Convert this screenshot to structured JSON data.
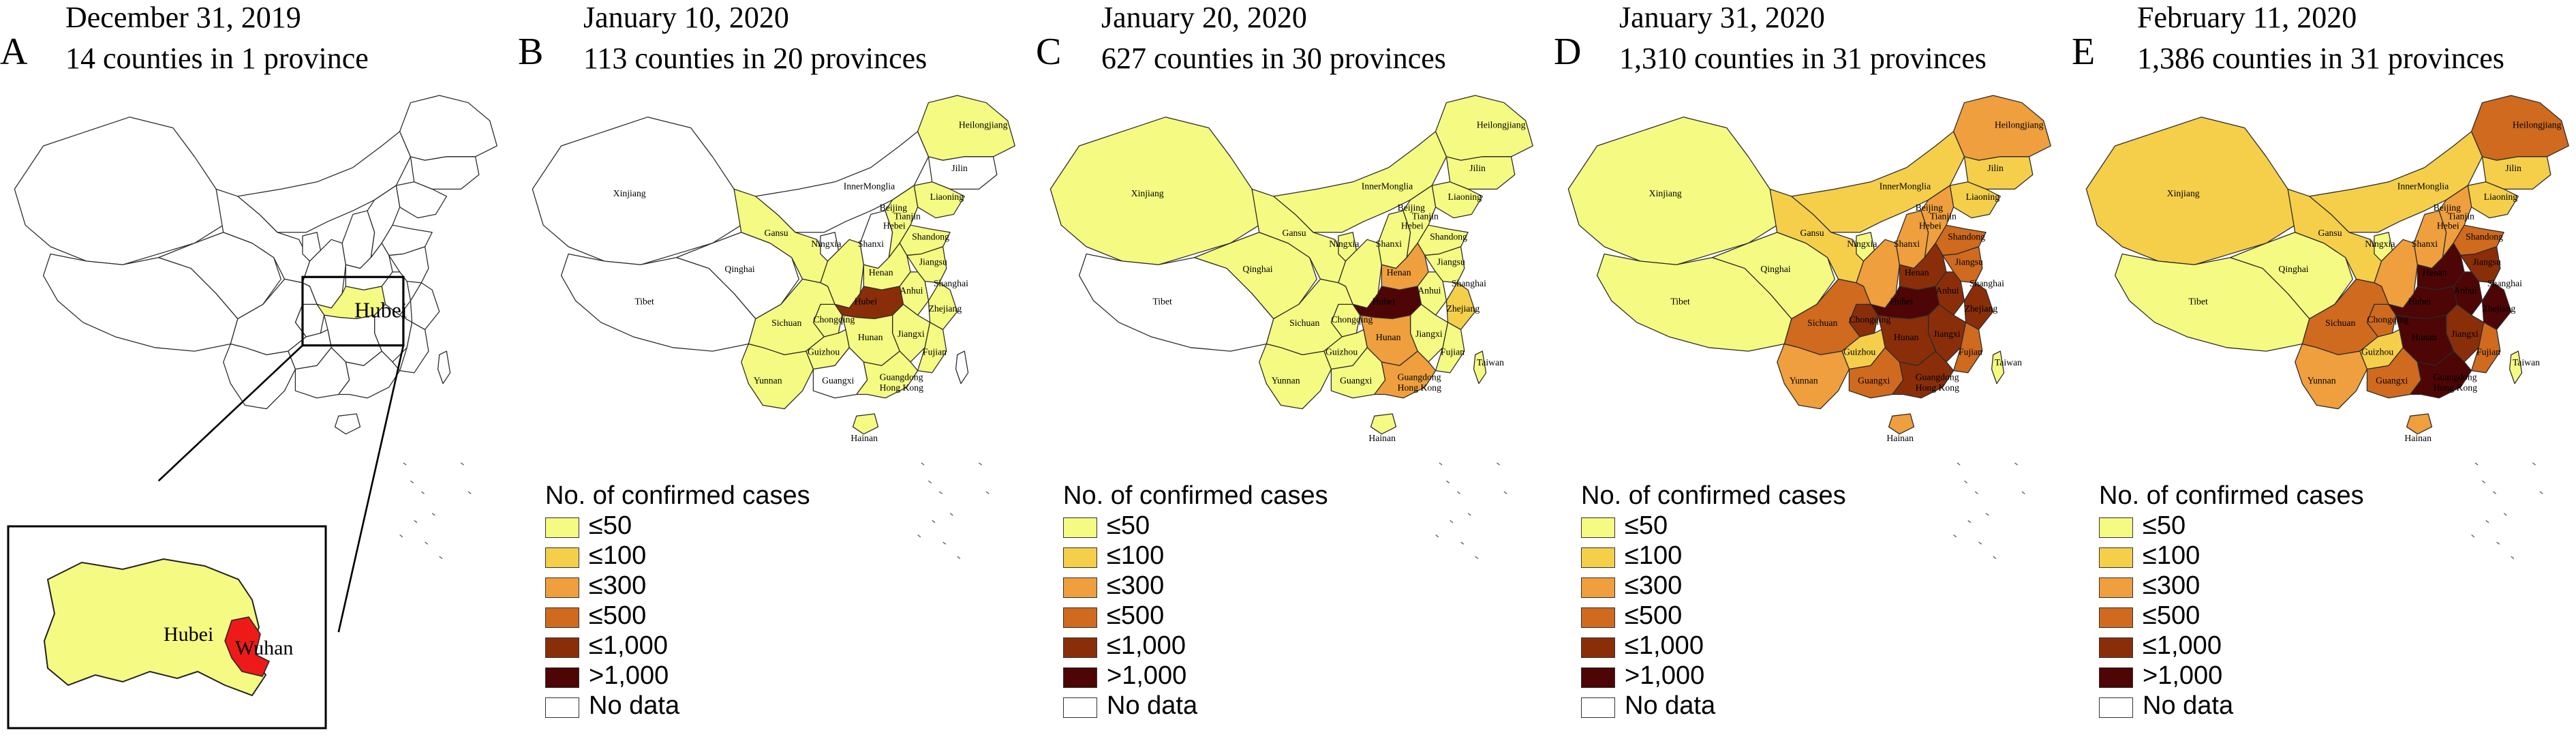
{
  "panels": [
    {
      "letter": "A",
      "date": "December 31, 2019",
      "subtitle": "14 counties in 1 province",
      "map_fill": {
        "Xinjiang": "none",
        "Tibet": "none",
        "Qinghai": "none",
        "Gansu": "none",
        "InnerMonglia": "none",
        "Heilongjiang": "none",
        "Jilin": "none",
        "Liaoning": "none",
        "Sichuan": "none",
        "Yunnan": "none",
        "Guangxi": "none",
        "Guangdong": "none",
        "Hunan": "none",
        "Jiangxi": "none",
        "Fujian": "none",
        "Zhejiang": "none",
        "Anhui": "none",
        "Henan": "none",
        "Shandong": "none",
        "Hebei": "none",
        "Shanxi": "none",
        "Shaanxi": "none",
        "Ningxia": "none",
        "Chongqing": "none",
        "Guizhou": "none",
        "Jiangsu": "none",
        "Hubei": "le50",
        "Hainan": "none",
        "Taiwan": "none"
      },
      "labels": {
        "hubei": "Hubei",
        "inset_hubei": "Hubei",
        "inset_wuhan": "Wuhan"
      }
    },
    {
      "letter": "B",
      "date": "January 10, 2020",
      "subtitle": "113 counties in 20 provinces",
      "map_fill": {
        "Xinjiang": "none",
        "Tibet": "none",
        "Qinghai": "none",
        "Gansu": "le50",
        "InnerMonglia": "none",
        "Heilongjiang": "le50",
        "Jilin": "none",
        "Liaoning": "le50",
        "Sichuan": "le50",
        "Yunnan": "le50",
        "Guangxi": "none",
        "Guangdong": "le50",
        "Hunan": "le50",
        "Jiangxi": "le50",
        "Fujian": "le50",
        "Zhejiang": "le50",
        "Anhui": "le50",
        "Henan": "le50",
        "Shandong": "le50",
        "Hebei": "le50",
        "Shanxi": "none",
        "Shaanxi": "le50",
        "Ningxia": "none",
        "Chongqing": "le50",
        "Guizhou": "le50",
        "Jiangsu": "le50",
        "Hubei": "le1000",
        "Hainan": "le50",
        "Taiwan": "none"
      },
      "labels": {
        "Xinjiang": "Xinjiang",
        "Tibet": "Tibet",
        "Qinghai": "Qinghai",
        "Gansu": "Gansu",
        "InnerMonglia": "InnerMonglia",
        "Heilongjiang": "Heilongjiang",
        "Jilin": "Jilin",
        "Liaoning": "Liaoning",
        "Sichuan": "Sichuan",
        "Yunnan": "Yunnan",
        "Guangxi": "Guangxi",
        "Guangdong": "Guangdong",
        "Hunan": "Hunan",
        "Jiangxi": "Jiangxi",
        "Fujian": "Fujian",
        "Zhejiang": "Zhejiang",
        "Anhui": "Anhui",
        "Henan": "Henan",
        "Shandong": "Shandong",
        "Hebei": "Hebei",
        "Shanxi": "Shanxi",
        "Ningxia": "Ningxia",
        "Chongqing": "Chongqing",
        "Guizhou": "Guizhou",
        "Jiangsu": "Jiangsu",
        "Hubei": "Hubei",
        "Hainan": "Hainan",
        "Beijing": "Beijing",
        "Tianjin": "Tianjin",
        "Shanghai": "Shanghai",
        "HongKong": "Hong Kong"
      }
    },
    {
      "letter": "C",
      "date": "January 20, 2020",
      "subtitle": "627 counties in 30 provinces",
      "map_fill": {
        "Xinjiang": "le50",
        "Tibet": "none",
        "Qinghai": "le50",
        "Gansu": "le50",
        "InnerMonglia": "le50",
        "Heilongjiang": "le50",
        "Jilin": "le50",
        "Liaoning": "le50",
        "Sichuan": "le50",
        "Yunnan": "le50",
        "Guangxi": "le50",
        "Guangdong": "le300",
        "Hunan": "le300",
        "Jiangxi": "le50",
        "Fujian": "le50",
        "Zhejiang": "le100",
        "Anhui": "le50",
        "Henan": "le300",
        "Shandong": "le50",
        "Hebei": "le50",
        "Shanxi": "le50",
        "Shaanxi": "le50",
        "Ningxia": "le50",
        "Chongqing": "le50",
        "Guizhou": "le50",
        "Jiangsu": "le50",
        "Hubei": "gt1000",
        "Hainan": "le50",
        "Taiwan": "le50"
      },
      "labels": {
        "Xinjiang": "Xinjiang",
        "Tibet": "Tibet",
        "Qinghai": "Qinghai",
        "Gansu": "Gansu",
        "InnerMonglia": "InnerMonglia",
        "Heilongjiang": "Heilongjiang",
        "Jilin": "Jilin",
        "Liaoning": "Liaoning",
        "Sichuan": "Sichuan",
        "Yunnan": "Yunnan",
        "Guangxi": "Guangxi",
        "Guangdong": "Guangdong",
        "Hunan": "Hunan",
        "Jiangxi": "Jiangxi",
        "Fujian": "Fujian",
        "Zhejiang": "Zhejiang",
        "Anhui": "Anhui",
        "Henan": "Henan",
        "Shandong": "Shandong",
        "Hebei": "Hebei",
        "Shanxi": "Shanxi",
        "Ningxia": "Ningxia",
        "Chongqing": "Chongqing",
        "Guizhou": "Guizhou",
        "Jiangsu": "Jiangsu",
        "Hubei": "Hubei",
        "Hainan": "Hainan",
        "Beijing": "Beijing",
        "Tianjin": "Tianjin",
        "Shanghai": "Shanghai",
        "HongKong": "Hong Kong",
        "Taiwan": "Taiwan"
      }
    },
    {
      "letter": "D",
      "date": "January 31, 2020",
      "subtitle": "1,310 counties in 31 provinces",
      "map_fill": {
        "Xinjiang": "le50",
        "Tibet": "le50",
        "Qinghai": "le50",
        "Gansu": "le100",
        "InnerMonglia": "le100",
        "Heilongjiang": "le300",
        "Jilin": "le100",
        "Liaoning": "le100",
        "Sichuan": "le500",
        "Yunnan": "le300",
        "Guangxi": "le500",
        "Guangdong": "le1000",
        "Hunan": "le1000",
        "Jiangxi": "le1000",
        "Fujian": "le500",
        "Zhejiang": "le1000",
        "Anhui": "le1000",
        "Henan": "le1000",
        "Shandong": "le500",
        "Hebei": "le300",
        "Shanxi": "le300",
        "Shaanxi": "le300",
        "Ningxia": "le50",
        "Chongqing": "le1000",
        "Guizhou": "le100",
        "Jiangsu": "le500",
        "Hubei": "gt1000",
        "Hainan": "le300",
        "Taiwan": "le50"
      },
      "labels": {
        "Xinjiang": "Xinjiang",
        "Tibet": "Tibet",
        "Qinghai": "Qinghai",
        "Gansu": "Gansu",
        "InnerMonglia": "InnerMonglia",
        "Heilongjiang": "Heilongjiang",
        "Jilin": "Jilin",
        "Liaoning": "Liaoning",
        "Sichuan": "Sichuan",
        "Yunnan": "Yunnan",
        "Guangxi": "Guangxi",
        "Guangdong": "Guangdong",
        "Hunan": "Hunan",
        "Jiangxi": "Jiangxi",
        "Fujian": "Fujian",
        "Zhejiang": "Zhejiang",
        "Anhui": "Anhui",
        "Henan": "Henan",
        "Shandong": "Shandong",
        "Hebei": "Hebei",
        "Shanxi": "Shanxi",
        "Ningxia": "Ningxia",
        "Chongqing": "Chongqing",
        "Guizhou": "Guizhou",
        "Jiangsu": "Jiangsu",
        "Hubei": "Hubei",
        "Hainan": "Hainan",
        "Beijing": "Beijing",
        "Tianjin": "Tianjin",
        "Shanghai": "Shanghai",
        "HongKong": "Hong Kong",
        "Taiwan": "Taiwan"
      }
    },
    {
      "letter": "E",
      "date": "February 11, 2020",
      "subtitle": "1,386 counties in 31 provinces",
      "map_fill": {
        "Xinjiang": "le100",
        "Tibet": "le50",
        "Qinghai": "le50",
        "Gansu": "le100",
        "InnerMonglia": "le100",
        "Heilongjiang": "le500",
        "Jilin": "le100",
        "Liaoning": "le100",
        "Sichuan": "le500",
        "Yunnan": "le300",
        "Guangxi": "le500",
        "Guangdong": "gt1000",
        "Hunan": "gt1000",
        "Jiangxi": "le1000",
        "Fujian": "le500",
        "Zhejiang": "gt1000",
        "Anhui": "gt1000",
        "Henan": "gt1000",
        "Shandong": "le500",
        "Hebei": "le300",
        "Shanxi": "le300",
        "Shaanxi": "le300",
        "Ningxia": "le50",
        "Chongqing": "le500",
        "Guizhou": "le100",
        "Jiangsu": "le1000",
        "Hubei": "gt1000",
        "Hainan": "le300",
        "Taiwan": "le50"
      },
      "labels": {
        "Xinjiang": "Xinjiang",
        "Tibet": "Tibet",
        "Qinghai": "Qinghai",
        "Gansu": "Gansu",
        "InnerMonglia": "InnerMonglia",
        "Heilongjiang": "Heilongjiang",
        "Jilin": "Jilin",
        "Liaoning": "Liaoning",
        "Sichuan": "Sichuan",
        "Yunnan": "Yunnan",
        "Guangxi": "Guangxi",
        "Guangdong": "Guangdong",
        "Hunan": "Hunan",
        "Jiangxi": "Jiangxi",
        "Fujian": "Fujian",
        "Zhejiang": "Zhejiang",
        "Anhui": "Anhui",
        "Henan": "Henan",
        "Shandong": "Shandong",
        "Hebei": "Hebei",
        "Shanxi": "Shanxi",
        "Ningxia": "Ningxia",
        "Chongqing": "Chongqing",
        "Guizhou": "Guizhou",
        "Jiangsu": "Jiangsu",
        "Hubei": "Hubei",
        "Hainan": "Hainan",
        "Beijing": "Beijing",
        "Tianjin": "Tianjin",
        "Shanghai": "Shanghai",
        "HongKong": "Hong Kong",
        "Taiwan": "Taiwan"
      }
    }
  ],
  "legend": {
    "title": "No. of confirmed cases",
    "items": [
      {
        "key": "le50",
        "label": "≤50",
        "color": "#f5fa82"
      },
      {
        "key": "le100",
        "label": "≤100",
        "color": "#f5cf4a"
      },
      {
        "key": "le300",
        "label": "≤300",
        "color": "#ef9f3d"
      },
      {
        "key": "le500",
        "label": "≤500",
        "color": "#cf6a1f"
      },
      {
        "key": "le1000",
        "label": "≤1,000",
        "color": "#8a2e0a"
      },
      {
        "key": "gt1000",
        "label": ">1,000",
        "color": "#4d0505"
      },
      {
        "key": "none",
        "label": "No data",
        "color": "#ffffff"
      }
    ]
  },
  "colors": {
    "wuhan": "#ee1a1a",
    "border": "#2a2a2a"
  }
}
